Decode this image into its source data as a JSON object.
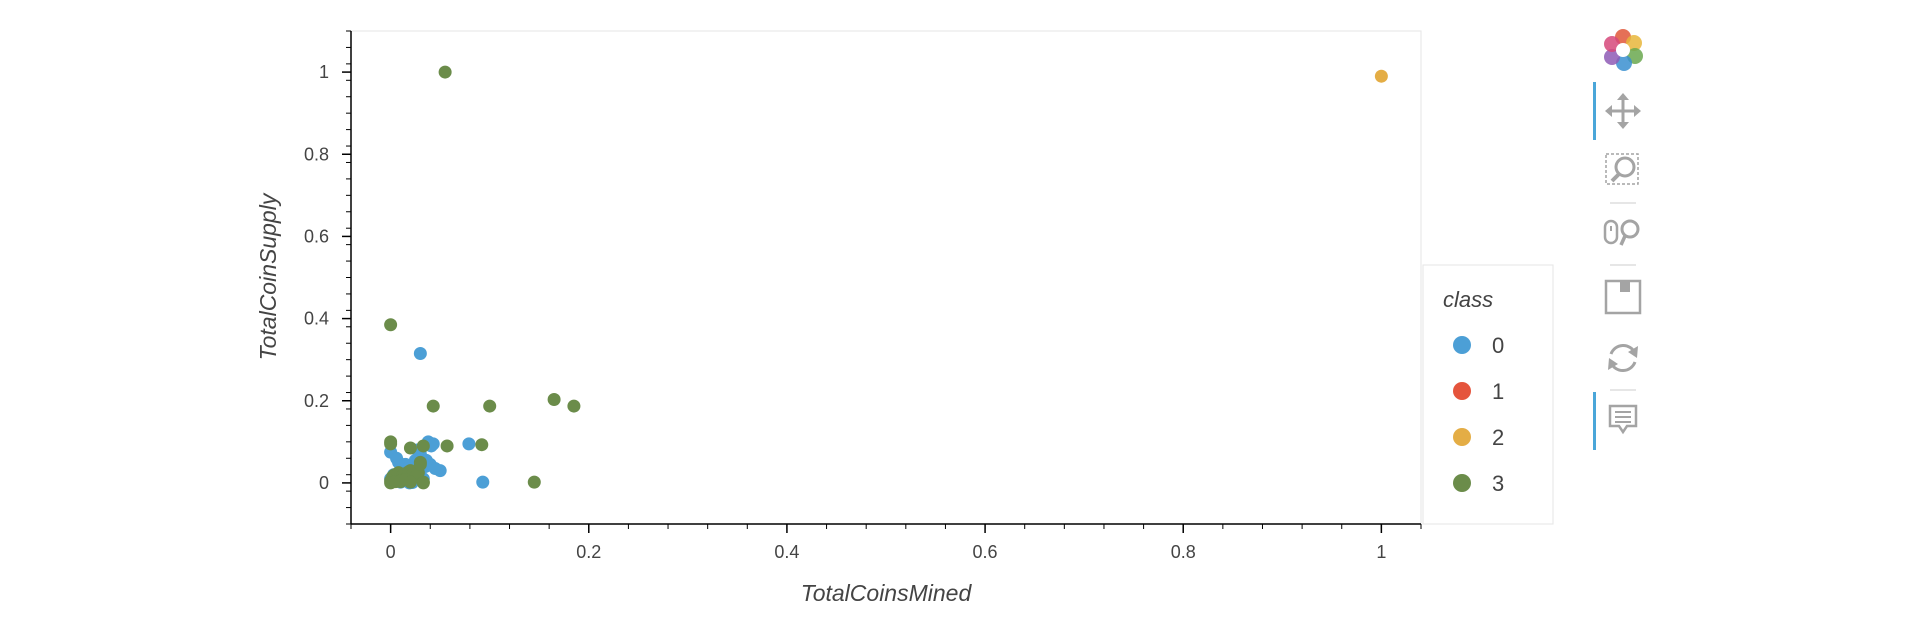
{
  "chart_data": {
    "type": "scatter",
    "xlabel": "TotalCoinsMined",
    "ylabel": "TotalCoinSupply",
    "xlim": [
      -0.04,
      1.04
    ],
    "ylim": [
      -0.1,
      1.1
    ],
    "xticks": [
      0,
      0.2,
      0.4,
      0.6,
      0.8,
      1
    ],
    "xtick_labels": [
      "0",
      "0.2",
      "0.4",
      "0.6",
      "0.8",
      "1"
    ],
    "yticks": [
      0,
      0.2,
      0.4,
      0.6,
      0.8,
      1
    ],
    "ytick_labels": [
      "0",
      "0.2",
      "0.4",
      "0.6",
      "0.8",
      "1"
    ],
    "grid": false,
    "legend_placement": "right",
    "legend": {
      "title": "class",
      "entries": [
        {
          "label": "0",
          "color": "#4c9fd6"
        },
        {
          "label": "1",
          "color": "#e5543c"
        },
        {
          "label": "2",
          "color": "#e4ad45"
        },
        {
          "label": "3",
          "color": "#6b8c4a"
        }
      ]
    },
    "series": [
      {
        "name": "0",
        "color": "#4c9fd6",
        "x": [
          0.0,
          0.002,
          0.005,
          0.008,
          0.01,
          0.012,
          0.015,
          0.018,
          0.02,
          0.022,
          0.025,
          0.028,
          0.03,
          0.033,
          0.035,
          0.038,
          0.04,
          0.043,
          0.045,
          0.05,
          0.003,
          0.006,
          0.009,
          0.011,
          0.014,
          0.017,
          0.019,
          0.024,
          0.027,
          0.03,
          0.036,
          0.041,
          0.03,
          0.079,
          0.093,
          0.0
        ],
        "y": [
          0.075,
          0.003,
          0.01,
          0.05,
          0.002,
          0.02,
          0.045,
          0.003,
          0.03,
          0.001,
          0.055,
          0.04,
          0.07,
          0.01,
          0.04,
          0.1,
          0.045,
          0.095,
          0.035,
          0.03,
          0.02,
          0.06,
          0.005,
          0.025,
          0.015,
          0.035,
          0.0,
          0.02,
          0.08,
          0.315,
          0.055,
          0.09,
          0.05,
          0.095,
          0.002,
          0.01
        ]
      },
      {
        "name": "1",
        "color": "#e5543c",
        "x": [],
        "y": []
      },
      {
        "name": "2",
        "color": "#e4ad45",
        "x": [
          1.0
        ],
        "y": [
          0.99
        ]
      },
      {
        "name": "3",
        "color": "#6b8c4a",
        "x": [
          0.055,
          0.0,
          0.043,
          0.1,
          0.165,
          0.185,
          0.145,
          0.0,
          0.0,
          0.02,
          0.033,
          0.057,
          0.092,
          0.0,
          0.002,
          0.004,
          0.006,
          0.008,
          0.01,
          0.012,
          0.014,
          0.016,
          0.018,
          0.02,
          0.022,
          0.025,
          0.028,
          0.03,
          0.033,
          0.0,
          0.005,
          0.01,
          0.015,
          0.02,
          0.03,
          0.033
        ],
        "y": [
          1.0,
          0.385,
          0.187,
          0.187,
          0.203,
          0.187,
          0.002,
          0.1,
          0.095,
          0.085,
          0.09,
          0.09,
          0.093,
          0.005,
          0.015,
          0.02,
          0.01,
          0.025,
          0.003,
          0.018,
          0.022,
          0.012,
          0.027,
          0.03,
          0.02,
          0.015,
          0.025,
          0.05,
          0.002,
          0.0,
          0.003,
          0.005,
          0.008,
          0.002,
          0.045,
          0.0
        ]
      }
    ]
  },
  "toolbar": {
    "tools": [
      "bokeh-logo-icon",
      "pan-icon",
      "box-zoom-icon",
      "wheel-zoom-icon",
      "save-icon",
      "reset-icon",
      "hover-icon"
    ],
    "active_color": "#4aa6d9"
  }
}
